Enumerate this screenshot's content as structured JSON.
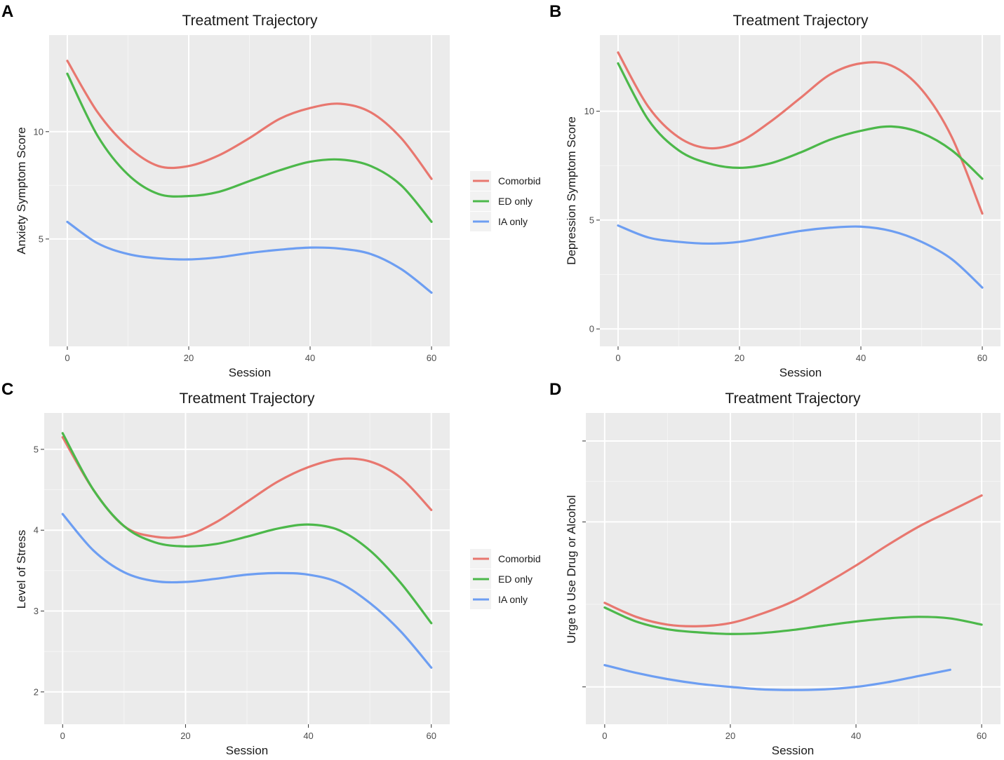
{
  "legend": [
    "Comorbid",
    "ED only",
    "IA only"
  ],
  "series_colors": {
    "Comorbid": "#E8776F",
    "ED only": "#4CB84A",
    "IA only": "#6D9EF2"
  },
  "chart_data": [
    {
      "panel": "A",
      "type": "line",
      "title": "Treatment Trajectory",
      "xlabel": "Session",
      "ylabel": "Anxiety Symptom Score",
      "xlim": [
        -3,
        63
      ],
      "ylim": [
        0,
        14.5
      ],
      "xticks": [
        0,
        20,
        40,
        60
      ],
      "yticks": [
        5,
        10
      ],
      "ytick_labels": [
        "5",
        "10"
      ],
      "legend": true,
      "series": [
        {
          "name": "Comorbid",
          "x": [
            0,
            5,
            10,
            15,
            20,
            25,
            30,
            35,
            40,
            45,
            50,
            55,
            60
          ],
          "y": [
            13.3,
            10.9,
            9.3,
            8.4,
            8.4,
            8.9,
            9.7,
            10.6,
            11.1,
            11.3,
            10.9,
            9.7,
            7.8
          ]
        },
        {
          "name": "ED only",
          "x": [
            0,
            5,
            10,
            15,
            20,
            25,
            30,
            35,
            40,
            45,
            50,
            55,
            60
          ],
          "y": [
            12.7,
            9.8,
            8.0,
            7.1,
            7.0,
            7.2,
            7.7,
            8.2,
            8.6,
            8.7,
            8.4,
            7.5,
            5.8
          ]
        },
        {
          "name": "IA only",
          "x": [
            0,
            5,
            10,
            15,
            20,
            25,
            30,
            35,
            40,
            45,
            50,
            55,
            60
          ],
          "y": [
            5.8,
            4.8,
            4.3,
            4.1,
            4.05,
            4.15,
            4.35,
            4.5,
            4.6,
            4.55,
            4.3,
            3.6,
            2.5
          ]
        }
      ]
    },
    {
      "panel": "B",
      "type": "line",
      "title": "Treatment Trajectory",
      "xlabel": "Session",
      "ylabel": "Depression Symptom Score",
      "xlim": [
        -3,
        63
      ],
      "ylim": [
        -0.8,
        13.5
      ],
      "xticks": [
        0,
        20,
        40,
        60
      ],
      "yticks": [
        0,
        5,
        10
      ],
      "ytick_labels": [
        "0",
        "5",
        "10"
      ],
      "legend": false,
      "series": [
        {
          "name": "Comorbid",
          "x": [
            0,
            5,
            10,
            15,
            20,
            25,
            30,
            35,
            40,
            45,
            50,
            55,
            60
          ],
          "y": [
            12.7,
            10.2,
            8.8,
            8.3,
            8.6,
            9.5,
            10.6,
            11.7,
            12.2,
            12.1,
            11.0,
            8.8,
            5.3
          ]
        },
        {
          "name": "ED only",
          "x": [
            0,
            5,
            10,
            15,
            20,
            25,
            30,
            35,
            40,
            45,
            50,
            55,
            60
          ],
          "y": [
            12.2,
            9.6,
            8.2,
            7.6,
            7.4,
            7.6,
            8.1,
            8.7,
            9.1,
            9.3,
            9.0,
            8.2,
            6.9
          ]
        },
        {
          "name": "IA only",
          "x": [
            0,
            5,
            10,
            15,
            20,
            25,
            30,
            35,
            40,
            45,
            50,
            55,
            60
          ],
          "y": [
            4.75,
            4.2,
            4.0,
            3.92,
            4.0,
            4.25,
            4.5,
            4.65,
            4.7,
            4.5,
            4.0,
            3.2,
            1.9
          ]
        }
      ]
    },
    {
      "panel": "C",
      "type": "line",
      "title": "Treatment Trajectory",
      "xlabel": "Session",
      "ylabel": "Level of Stress",
      "xlim": [
        -3,
        63
      ],
      "ylim": [
        1.6,
        5.45
      ],
      "xticks": [
        0,
        20,
        40,
        60
      ],
      "yticks": [
        2,
        3,
        4,
        5
      ],
      "ytick_labels": [
        "2",
        "3",
        "4",
        "5"
      ],
      "legend": true,
      "series": [
        {
          "name": "Comorbid",
          "x": [
            0,
            5,
            10,
            15,
            20,
            25,
            30,
            35,
            40,
            45,
            50,
            55,
            60
          ],
          "y": [
            5.15,
            4.5,
            4.05,
            3.92,
            3.93,
            4.1,
            4.35,
            4.6,
            4.78,
            4.88,
            4.85,
            4.65,
            4.25
          ]
        },
        {
          "name": "ED only",
          "x": [
            0,
            5,
            10,
            15,
            20,
            25,
            30,
            35,
            40,
            45,
            50,
            55,
            60
          ],
          "y": [
            5.2,
            4.5,
            4.05,
            3.85,
            3.8,
            3.83,
            3.92,
            4.02,
            4.07,
            4.0,
            3.75,
            3.35,
            2.85
          ]
        },
        {
          "name": "IA only",
          "x": [
            0,
            5,
            10,
            15,
            20,
            25,
            30,
            35,
            40,
            45,
            50,
            55,
            60
          ],
          "y": [
            4.2,
            3.75,
            3.48,
            3.37,
            3.36,
            3.4,
            3.45,
            3.47,
            3.45,
            3.35,
            3.1,
            2.75,
            2.3
          ]
        }
      ]
    },
    {
      "panel": "D",
      "type": "line",
      "title": "Treatment Trajectory",
      "xlabel": "Session",
      "ylabel": "Urge to Use Drug or Alcohol",
      "xlim": [
        -3,
        63
      ],
      "ylim": [
        0,
        10
      ],
      "xticks": [
        0,
        20,
        40,
        60
      ],
      "yticks": [
        1.2,
        6.5,
        9.1
      ],
      "ytick_labels": [
        "",
        "",
        ""
      ],
      "legend": false,
      "series": [
        {
          "name": "Comorbid",
          "x": [
            0,
            5,
            10,
            15,
            20,
            25,
            30,
            35,
            40,
            45,
            50,
            55,
            60
          ],
          "y": [
            3.9,
            3.45,
            3.2,
            3.15,
            3.25,
            3.55,
            3.95,
            4.5,
            5.1,
            5.75,
            6.35,
            6.85,
            7.35
          ]
        },
        {
          "name": "ED only",
          "x": [
            0,
            5,
            10,
            15,
            20,
            25,
            30,
            35,
            40,
            45,
            50,
            55,
            60
          ],
          "y": [
            3.75,
            3.3,
            3.05,
            2.95,
            2.9,
            2.93,
            3.03,
            3.17,
            3.3,
            3.4,
            3.45,
            3.4,
            3.2
          ]
        },
        {
          "name": "IA only",
          "x": [
            0,
            5,
            10,
            15,
            20,
            25,
            30,
            35,
            40,
            45,
            50,
            55
          ],
          "y": [
            1.9,
            1.65,
            1.45,
            1.3,
            1.2,
            1.12,
            1.1,
            1.12,
            1.2,
            1.35,
            1.55,
            1.75
          ]
        }
      ]
    }
  ]
}
